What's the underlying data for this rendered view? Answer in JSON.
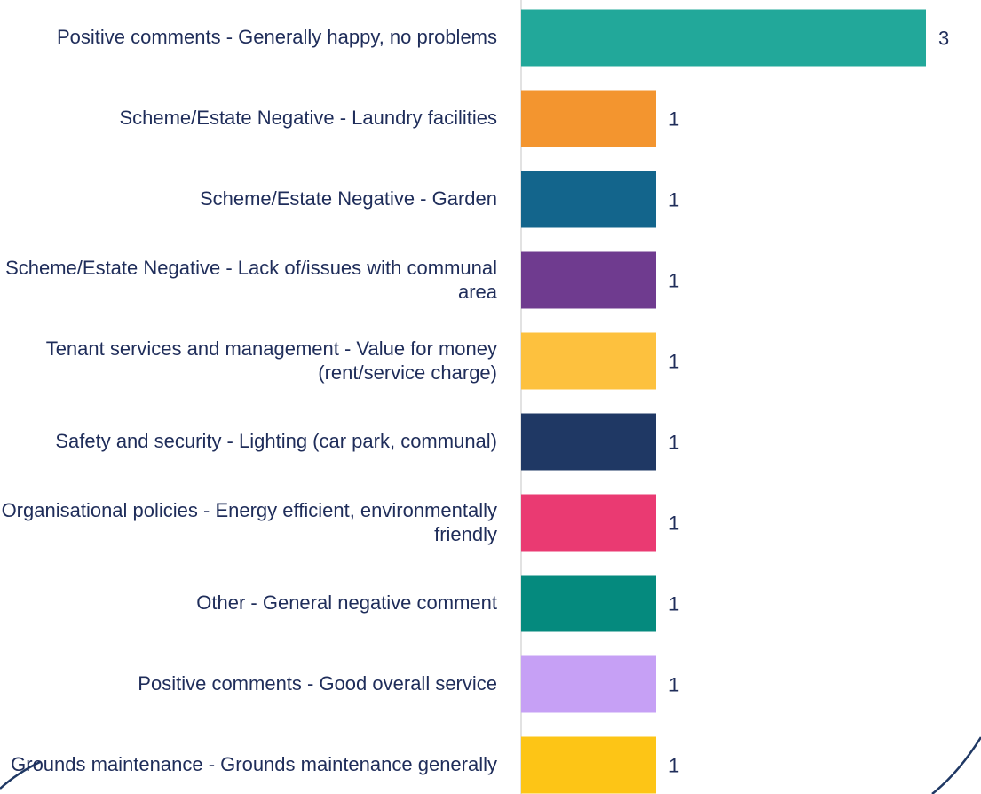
{
  "chart_data": {
    "type": "bar",
    "orientation": "horizontal",
    "categories": [
      "Positive comments - Generally happy, no problems",
      "Scheme/Estate Negative - Laundry facilities",
      "Scheme/Estate Negative - Garden",
      "Scheme/Estate Negative - Lack of/issues with communal area",
      "Tenant services and management - Value for money (rent/service charge)",
      "Safety and security - Lighting (car park, communal)",
      "Organisational policies - Energy efficient, environmentally friendly",
      "Other - General negative comment",
      "Positive comments - Good overall service",
      "Grounds maintenance - Grounds maintenance generally"
    ],
    "values": [
      3,
      1,
      1,
      1,
      1,
      1,
      1,
      1,
      1,
      1
    ],
    "colors": [
      "#22a89a",
      "#f3952f",
      "#13658c",
      "#6f3b8f",
      "#fdc13e",
      "#1f3864",
      "#ea3a72",
      "#058a7e",
      "#c6a0f5",
      "#fdc516"
    ],
    "xlim": [
      0,
      3
    ]
  }
}
